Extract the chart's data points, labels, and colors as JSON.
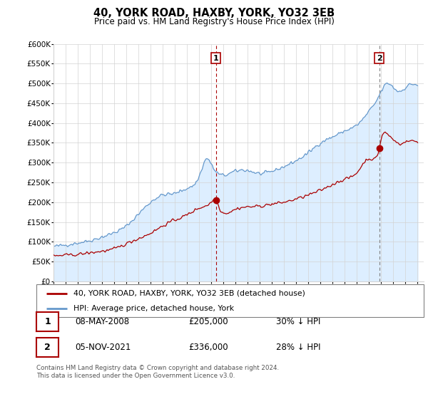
{
  "title": "40, YORK ROAD, HAXBY, YORK, YO32 3EB",
  "subtitle": "Price paid vs. HM Land Registry's House Price Index (HPI)",
  "legend_label_red": "40, YORK ROAD, HAXBY, YORK, YO32 3EB (detached house)",
  "legend_label_blue": "HPI: Average price, detached house, York",
  "annotation1_label": "1",
  "annotation1_date": "08-MAY-2008",
  "annotation1_price": "£205,000",
  "annotation1_hpi": "30% ↓ HPI",
  "annotation2_label": "2",
  "annotation2_date": "05-NOV-2021",
  "annotation2_price": "£336,000",
  "annotation2_hpi": "28% ↓ HPI",
  "footer": "Contains HM Land Registry data © Crown copyright and database right 2024.\nThis data is licensed under the Open Government Licence v3.0.",
  "ylim": [
    0,
    600000
  ],
  "yticks": [
    0,
    50000,
    100000,
    150000,
    200000,
    250000,
    300000,
    350000,
    400000,
    450000,
    500000,
    550000,
    600000
  ],
  "ytick_labels": [
    "£0",
    "£50K",
    "£100K",
    "£150K",
    "£200K",
    "£250K",
    "£300K",
    "£350K",
    "£400K",
    "£450K",
    "£500K",
    "£550K",
    "£600K"
  ],
  "red_color": "#aa0000",
  "blue_color": "#6699cc",
  "fill_color": "#ddeeff",
  "marker1_x": 2008.37,
  "marker1_y": 205000,
  "marker2_x": 2021.84,
  "marker2_y": 336000,
  "vline1_x": 2008.37,
  "vline2_x": 2021.84,
  "xlim_start": 1995.0,
  "xlim_end": 2025.5
}
